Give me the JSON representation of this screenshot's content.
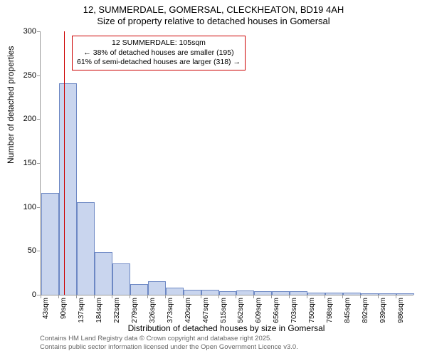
{
  "title_line1": "12, SUMMERDALE, GOMERSAL, CLECKHEATON, BD19 4AH",
  "title_line2": "Size of property relative to detached houses in Gomersal",
  "ylabel": "Number of detached properties",
  "xlabel": "Distribution of detached houses by size in Gomersal",
  "footer1": "Contains HM Land Registry data © Crown copyright and database right 2025.",
  "footer2": "Contains public sector information licensed under the Open Government Licence v3.0.",
  "chart": {
    "type": "bar",
    "ylim": [
      0,
      300
    ],
    "ytick_step": 50,
    "bar_fill": "#c9d5ee",
    "bar_stroke": "#6d88c4",
    "background": "#ffffff",
    "axis_color": "#999999",
    "marker_color": "#cc0000",
    "marker_x_value": 105,
    "x_start": 43,
    "x_step": 47,
    "bar_count": 21,
    "values": [
      115,
      240,
      105,
      48,
      35,
      11,
      15,
      7,
      5,
      5,
      3,
      4,
      3,
      3,
      3,
      2,
      2,
      2,
      1,
      1,
      1
    ],
    "xticks": [
      "43sqm",
      "90sqm",
      "137sqm",
      "184sqm",
      "232sqm",
      "279sqm",
      "326sqm",
      "373sqm",
      "420sqm",
      "467sqm",
      "515sqm",
      "562sqm",
      "609sqm",
      "656sqm",
      "703sqm",
      "750sqm",
      "798sqm",
      "845sqm",
      "892sqm",
      "939sqm",
      "986sqm"
    ]
  },
  "annotation": {
    "border_color": "#cc0000",
    "line1": "12 SUMMERDALE: 105sqm",
    "line2": "← 38% of detached houses are smaller (195)",
    "line3": "61% of semi-detached houses are larger (318) →"
  }
}
